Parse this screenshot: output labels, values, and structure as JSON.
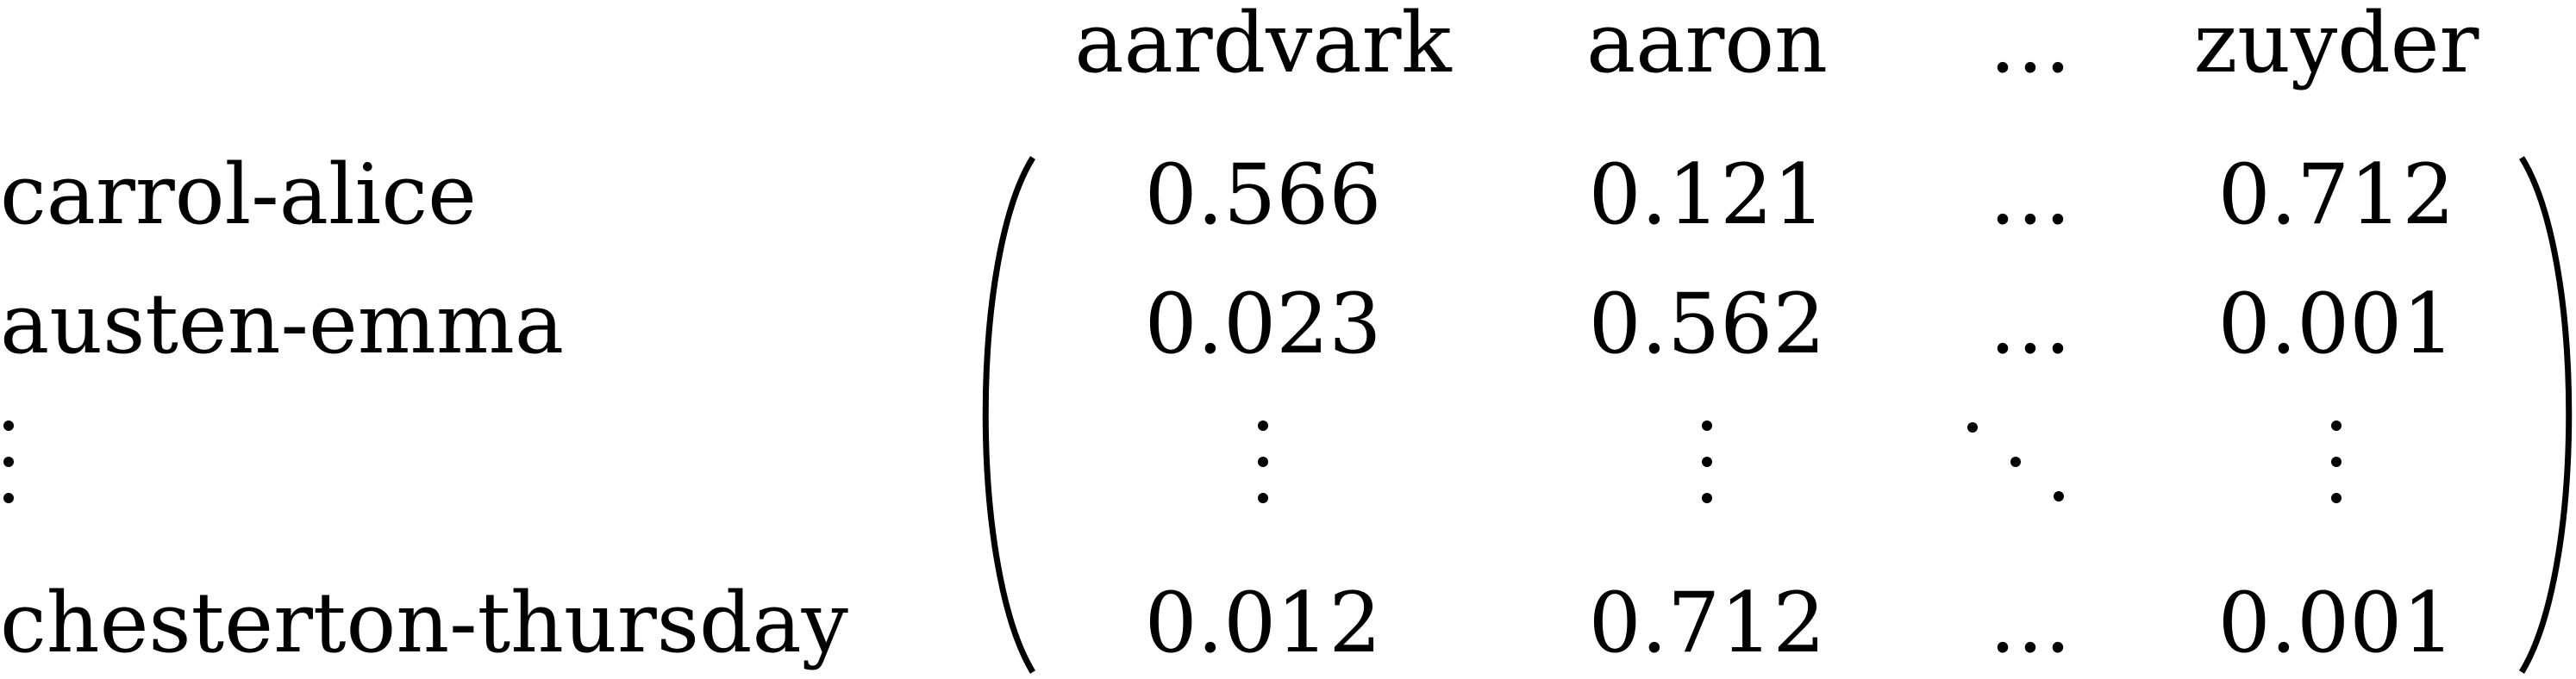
{
  "columns": [
    "aardvark",
    "aaron",
    "…",
    "zuyder"
  ],
  "rows": [
    {
      "label": "carrol-alice",
      "values": [
        "0.566",
        "0.121",
        "…",
        "0.712"
      ]
    },
    {
      "label": "austen-emma",
      "values": [
        "0.023",
        "0.562",
        "…",
        "0.001"
      ]
    },
    {
      "label": "⋮",
      "values": [
        "⋮",
        "⋮",
        "⋱",
        "⋮"
      ]
    },
    {
      "label": "chesterton-thursday",
      "values": [
        "0.012",
        "0.712",
        "…",
        "0.001"
      ]
    }
  ]
}
